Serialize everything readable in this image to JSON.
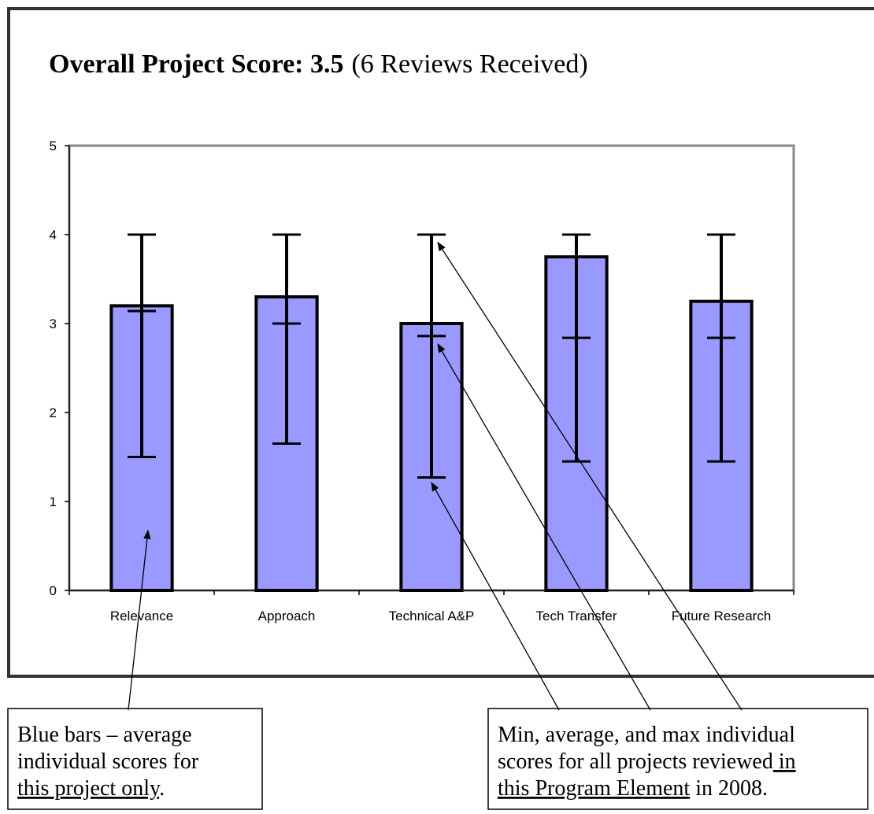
{
  "chart_data": {
    "type": "bar",
    "title_bold": "Overall Project Score: 3.5",
    "title_rest": "(6 Reviews Received)",
    "categories": [
      "Relevance",
      "Approach",
      "Technical A&P",
      "Tech Transfer",
      "Future Research"
    ],
    "values": [
      3.2,
      3.3,
      3.0,
      3.75,
      3.25
    ],
    "color": "#9999ff",
    "min_values": [
      1.5,
      1.65,
      1.27,
      1.45,
      1.45
    ],
    "avg_values": [
      3.14,
      3.0,
      2.86,
      2.84,
      2.84
    ],
    "max_values": [
      4,
      4,
      4,
      4,
      4
    ],
    "ylim": [
      0,
      5
    ],
    "yticks": [
      0,
      1,
      2,
      3,
      4,
      5
    ],
    "annotations": [
      {
        "lines": [
          [
            {
              "text": "Blue bars – average"
            }
          ],
          [
            {
              "text": "individual scores for"
            }
          ],
          [
            {
              "text": "this project only",
              "underline": true
            },
            {
              "text": "."
            }
          ]
        ]
      },
      {
        "lines": [
          [
            {
              "text": "Min, average, and max individual"
            }
          ],
          [
            {
              "text": "scores for all projects reviewed"
            },
            {
              "text": " in",
              "underline": true
            }
          ],
          [
            {
              "text": "this Program Element",
              "underline": true
            },
            {
              "text": " in 2008."
            }
          ]
        ]
      }
    ]
  }
}
